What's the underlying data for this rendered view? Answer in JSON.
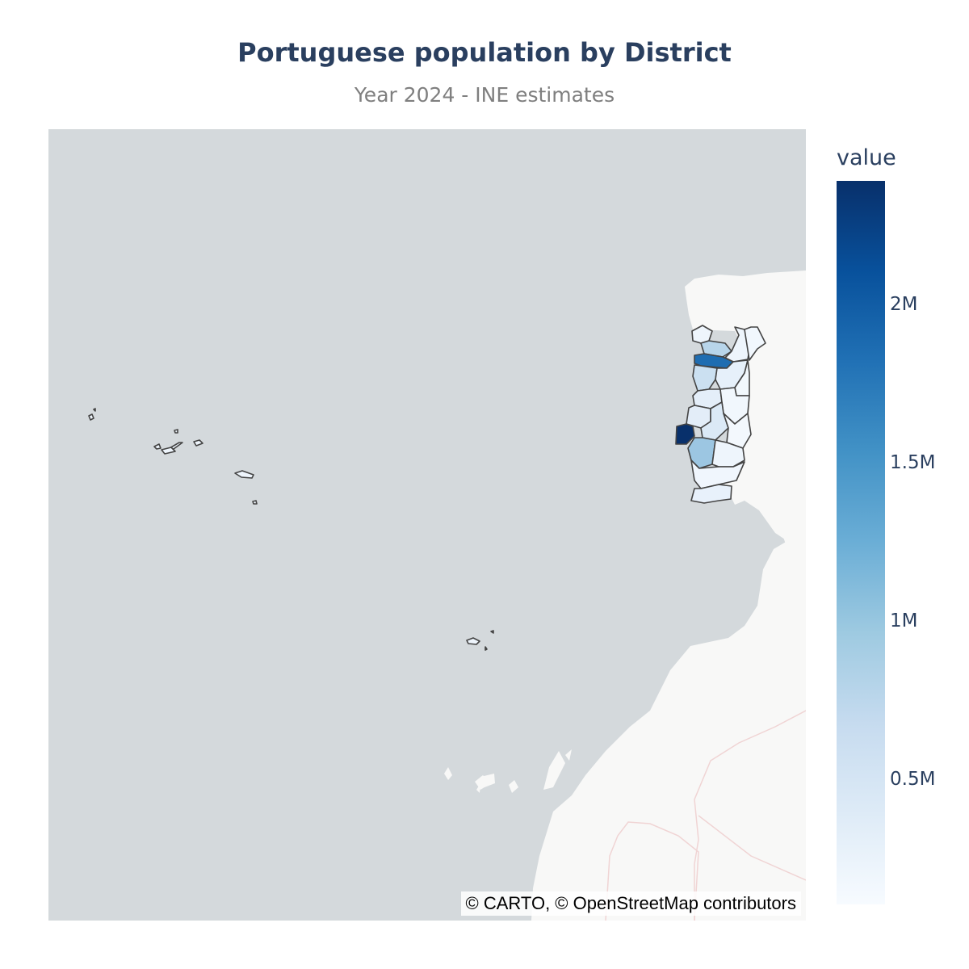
{
  "title": "Portuguese population by District",
  "subtitle": "Year 2024 - INE estimates",
  "map": {
    "attribution": "© CARTO, © OpenStreetMap contributors",
    "colors": {
      "ocean": "#d4d9dc",
      "land": "#f8f8f7",
      "region_border": "#444444",
      "country_border": "#f0d4d4"
    }
  },
  "colorbar": {
    "title": "value",
    "colorscale": "Blues",
    "ticks": [
      {
        "label": "2M",
        "value": 2000000
      },
      {
        "label": "1.5M",
        "value": 1500000
      },
      {
        "label": "1M",
        "value": 1000000
      },
      {
        "label": "0.5M",
        "value": 500000
      }
    ],
    "range": [
      100000,
      2390000
    ]
  }
}
